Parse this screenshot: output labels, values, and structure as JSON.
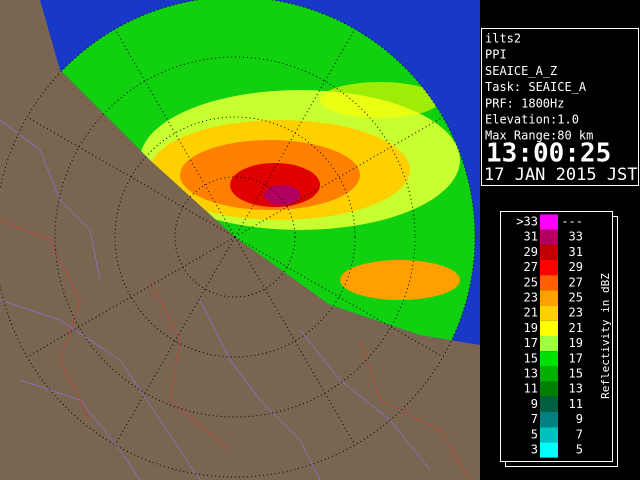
{
  "info": {
    "lines": [
      "ilts2",
      "PPI",
      "SEAICE_A_Z",
      "Task: SEAICE_A",
      "PRF: 1800Hz",
      "Elevation:1.0",
      "Max Range:80 km"
    ],
    "time": "13:00:25",
    "date": "17 JAN 2015 JST"
  },
  "legend": {
    "title": "Reflectivity in dBZ",
    "rows": [
      {
        "low": ">33",
        "high": "---",
        "color": "#ff00ff"
      },
      {
        "low": 31,
        "high": 33,
        "color": "#b00060"
      },
      {
        "low": 29,
        "high": 31,
        "color": "#c00000"
      },
      {
        "low": 27,
        "high": 29,
        "color": "#ff0000"
      },
      {
        "low": 25,
        "high": 27,
        "color": "#ff6000"
      },
      {
        "low": 23,
        "high": 25,
        "color": "#ffa000"
      },
      {
        "low": 21,
        "high": 23,
        "color": "#ffd000"
      },
      {
        "low": 19,
        "high": 21,
        "color": "#ffff00"
      },
      {
        "low": 17,
        "high": 19,
        "color": "#a0ff40"
      },
      {
        "low": 15,
        "high": 17,
        "color": "#00e000"
      },
      {
        "low": 13,
        "high": 15,
        "color": "#00b000"
      },
      {
        "low": 11,
        "high": 13,
        "color": "#008000"
      },
      {
        "low": 9,
        "high": 11,
        "color": "#006040"
      },
      {
        "low": 7,
        "high": 9,
        "color": "#008080"
      },
      {
        "low": 5,
        "high": 7,
        "color": "#00c0c0"
      },
      {
        "low": 3,
        "high": 5,
        "color": "#00ffff"
      }
    ]
  }
}
